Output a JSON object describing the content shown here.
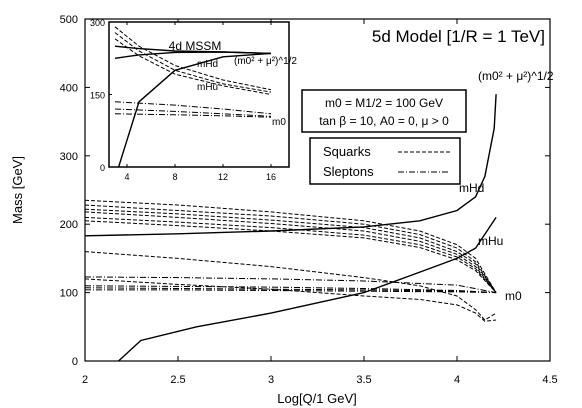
{
  "chart_data": [
    {
      "type": "line",
      "title": "5d Model [1/R = 1 TeV]",
      "xlabel": "Log[Q/1 GeV]",
      "ylabel": "Mass [GeV]",
      "xlim": [
        2,
        4.5
      ],
      "ylim": [
        0,
        500
      ],
      "xticks": [
        "2",
        "2.5",
        "3",
        "3.5",
        "4",
        "4.5"
      ],
      "yticks": [
        "0",
        "100",
        "200",
        "300",
        "400",
        "500"
      ],
      "params_box": [
        "m0 = M1/2 = 100 GeV",
        "tan β = 10, A0 = 0, μ > 0"
      ],
      "legend": {
        "position": "center-right",
        "entries": [
          "Squarks",
          "Sleptons"
        ]
      },
      "curve_labels": {
        "mHd": "mHd",
        "mHu": "mHu",
        "m0": "m0",
        "mix": "(m0² + μ²)^1/2"
      },
      "series": [
        {
          "name": "mHd",
          "style": "solid",
          "x": [
            2.0,
            2.5,
            3.0,
            3.5,
            3.8,
            4.0,
            4.1,
            4.15,
            4.2,
            4.21
          ],
          "y": [
            183,
            186,
            190,
            196,
            205,
            220,
            240,
            270,
            340,
            390
          ]
        },
        {
          "name": "mHu",
          "style": "solid",
          "x": [
            2.18,
            2.3,
            2.6,
            3.0,
            3.5,
            3.8,
            4.0,
            4.1,
            4.21
          ],
          "y": [
            0,
            30,
            50,
            70,
            100,
            130,
            150,
            165,
            210
          ]
        },
        {
          "style": "dashed",
          "x": [
            2.0,
            2.5,
            3.0,
            3.5,
            3.8,
            4.0,
            4.1,
            4.21
          ],
          "y": [
            235,
            228,
            218,
            205,
            190,
            170,
            150,
            100
          ]
        },
        {
          "style": "dashed",
          "x": [
            2.0,
            2.5,
            3.0,
            3.5,
            3.8,
            4.0,
            4.1,
            4.21
          ],
          "y": [
            228,
            220,
            212,
            200,
            185,
            165,
            145,
            100
          ]
        },
        {
          "style": "dashed",
          "x": [
            2.0,
            2.5,
            3.0,
            3.5,
            3.8,
            4.0,
            4.1,
            4.21
          ],
          "y": [
            222,
            215,
            206,
            195,
            180,
            160,
            142,
            100
          ]
        },
        {
          "style": "dashed",
          "x": [
            2.0,
            2.5,
            3.0,
            3.5,
            3.8,
            4.0,
            4.1,
            4.21
          ],
          "y": [
            218,
            210,
            201,
            190,
            175,
            156,
            138,
            100
          ]
        },
        {
          "style": "dashed",
          "x": [
            2.0,
            2.5,
            3.0,
            3.5,
            3.8,
            4.0,
            4.1,
            4.21
          ],
          "y": [
            210,
            203,
            195,
            184,
            170,
            152,
            135,
            100
          ]
        },
        {
          "style": "dashed",
          "x": [
            2.0,
            2.5,
            3.0,
            3.5,
            3.8,
            4.0,
            4.1,
            4.21
          ],
          "y": [
            205,
            198,
            190,
            180,
            166,
            148,
            132,
            100
          ]
        },
        {
          "style": "dashed",
          "x": [
            2.0,
            2.5,
            3.0,
            3.5,
            3.8,
            4.0,
            4.1,
            4.15,
            4.21
          ],
          "y": [
            160,
            150,
            138,
            122,
            110,
            95,
            75,
            60,
            70
          ]
        },
        {
          "style": "dashed",
          "x": [
            2.0,
            2.5,
            3.0,
            3.5,
            3.8,
            4.0,
            4.1,
            4.15,
            4.21
          ],
          "y": [
            120,
            112,
            105,
            95,
            90,
            82,
            70,
            58,
            60
          ]
        },
        {
          "style": "dashdot",
          "x": [
            2.0,
            2.5,
            3.0,
            3.5,
            4.0,
            4.21
          ],
          "y": [
            123,
            122,
            120,
            117,
            111,
            100
          ]
        },
        {
          "style": "dashdot",
          "x": [
            2.0,
            2.5,
            3.0,
            3.5,
            4.0,
            4.21
          ],
          "y": [
            110,
            109,
            108,
            106,
            103,
            100
          ]
        },
        {
          "style": "dashdot",
          "x": [
            2.0,
            2.5,
            3.0,
            3.5,
            4.0,
            4.21
          ],
          "y": [
            107,
            106,
            105,
            104,
            102,
            100
          ]
        },
        {
          "style": "dashdot",
          "x": [
            2.0,
            2.5,
            3.0,
            3.5,
            4.0,
            4.21
          ],
          "y": [
            104,
            104,
            103,
            102,
            101,
            100
          ]
        }
      ]
    },
    {
      "type": "line",
      "title": "4d MSSM",
      "xlim": [
        2.5,
        17.5
      ],
      "ylim": [
        0,
        300
      ],
      "xticks": [
        "4",
        "8",
        "12",
        "16"
      ],
      "yticks": [
        "0",
        "150",
        "300"
      ],
      "curve_labels": {
        "mHd": "mHd",
        "mHu": "mHu",
        "m0": "m0",
        "mix": "(m0² + μ²)^1/2"
      },
      "series": [
        {
          "name": "mHd",
          "style": "solid",
          "x": [
            3,
            5,
            8,
            12,
            16
          ],
          "y": [
            225,
            232,
            237,
            238,
            235
          ]
        },
        {
          "name": "mHu",
          "style": "solid",
          "x": [
            3.3,
            5,
            8,
            12,
            16
          ],
          "y": [
            0,
            135,
            200,
            228,
            235
          ]
        },
        {
          "name": "(m0² + μ²)^1/2",
          "style": "solid",
          "x": [
            3,
            5,
            8,
            12,
            16
          ],
          "y": [
            250,
            245,
            240,
            238,
            235
          ]
        },
        {
          "style": "dashed",
          "x": [
            3,
            5,
            8,
            12,
            16
          ],
          "y": [
            290,
            250,
            210,
            180,
            160
          ]
        },
        {
          "style": "dashed",
          "x": [
            3,
            5,
            8,
            12,
            16
          ],
          "y": [
            278,
            240,
            200,
            172,
            155
          ]
        },
        {
          "style": "dashed",
          "x": [
            3,
            5,
            8,
            12,
            16
          ],
          "y": [
            265,
            230,
            192,
            168,
            150
          ]
        },
        {
          "style": "dashdot",
          "x": [
            3,
            8,
            12,
            16
          ],
          "y": [
            135,
            128,
            120,
            110
          ]
        },
        {
          "style": "dashdot",
          "x": [
            3,
            8,
            12,
            16
          ],
          "y": [
            120,
            115,
            110,
            105
          ]
        },
        {
          "style": "dashdot",
          "x": [
            3,
            8,
            12,
            16
          ],
          "y": [
            110,
            108,
            106,
            103
          ]
        }
      ]
    }
  ]
}
